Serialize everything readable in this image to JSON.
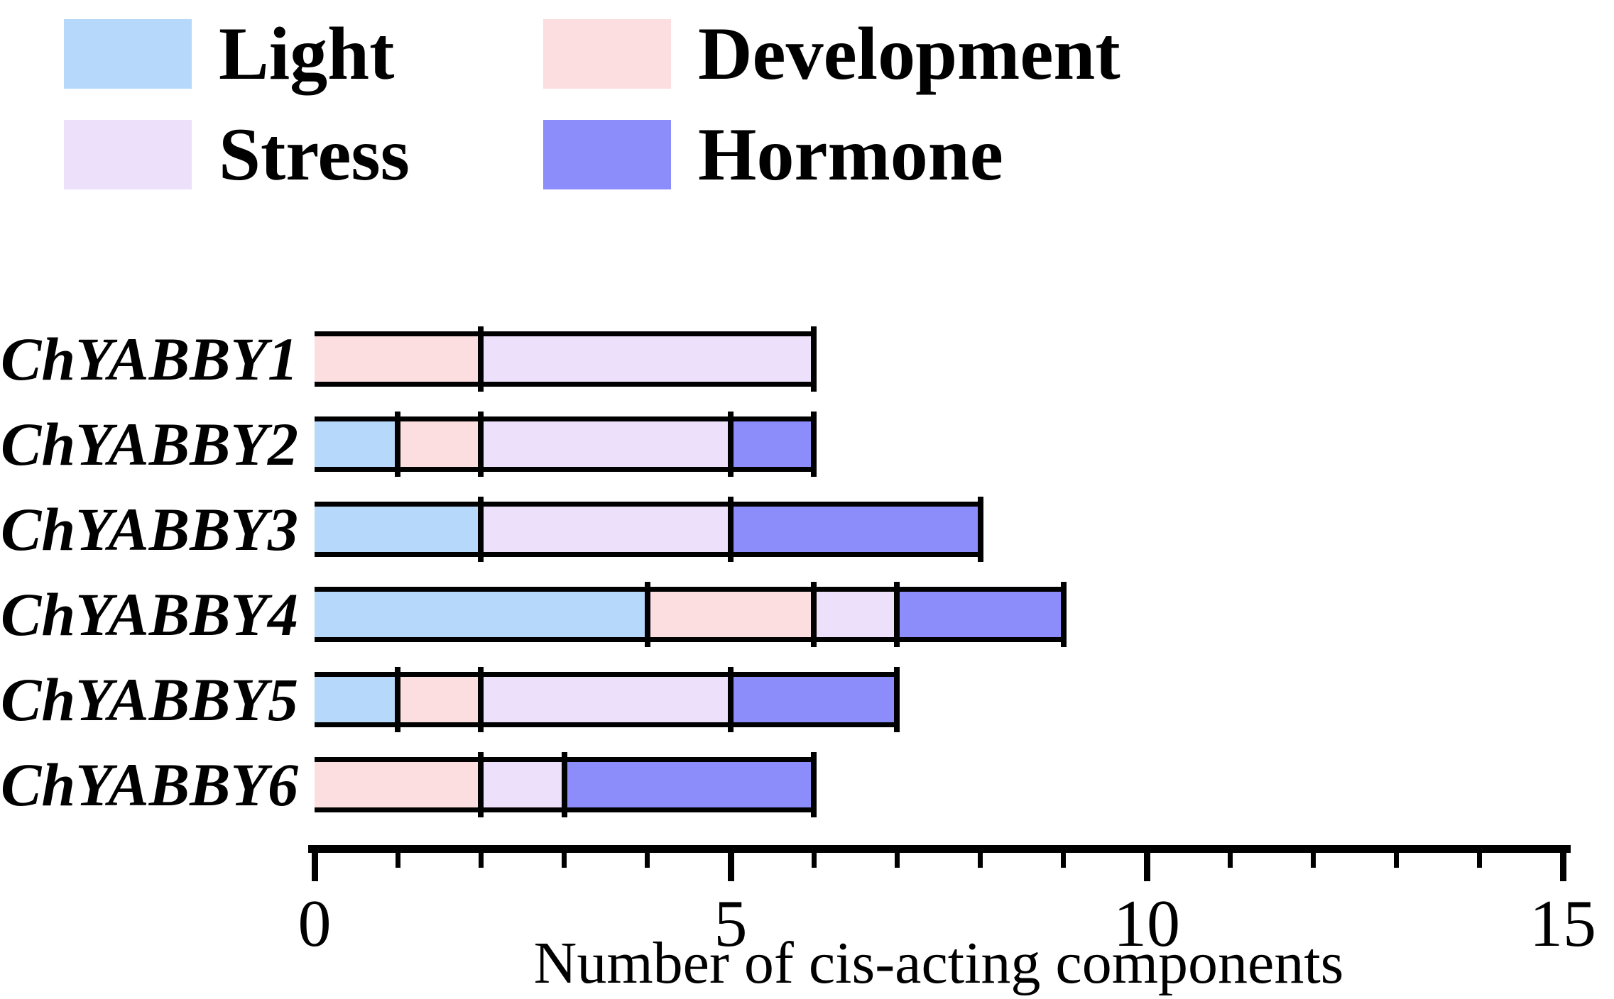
{
  "figure": {
    "background": "#ffffff"
  },
  "colors": {
    "light": "#B5D8FB",
    "development": "#FCDEE0",
    "stress": "#EDE0FA",
    "hormone": "#8C8CFA",
    "outline": "#000000"
  },
  "legend": {
    "items": [
      {
        "label": "Light",
        "key": "light"
      },
      {
        "label": "Development",
        "key": "development"
      },
      {
        "label": "Stress",
        "key": "stress"
      },
      {
        "label": "Hormone",
        "key": "hormone"
      }
    ]
  },
  "chart_data": {
    "type": "bar",
    "orientation": "horizontal",
    "stacked": true,
    "title": "",
    "xlabel": "Number of cis-acting components",
    "ylabel": "",
    "xlim": [
      0,
      15
    ],
    "x_major_ticks": [
      0,
      5,
      10,
      15
    ],
    "x_minor_tick_step": 1,
    "grid": false,
    "legend_position": "top-left",
    "categories": [
      "ChYABBY1",
      "ChYABBY2",
      "ChYABBY3",
      "ChYABBY4",
      "ChYABBY5",
      "ChYABBY6"
    ],
    "stack_order": [
      "light",
      "development",
      "stress",
      "hormone"
    ],
    "series": [
      {
        "name": "Light",
        "key": "light",
        "values": [
          0,
          1,
          2,
          4,
          1,
          0
        ]
      },
      {
        "name": "Development",
        "key": "development",
        "values": [
          2,
          1,
          0,
          2,
          1,
          2
        ]
      },
      {
        "name": "Stress",
        "key": "stress",
        "values": [
          4,
          3,
          3,
          1,
          3,
          1
        ]
      },
      {
        "name": "Hormone",
        "key": "hormone",
        "values": [
          0,
          1,
          3,
          2,
          2,
          3
        ]
      }
    ],
    "totals": [
      6,
      6,
      8,
      9,
      7,
      6
    ]
  }
}
